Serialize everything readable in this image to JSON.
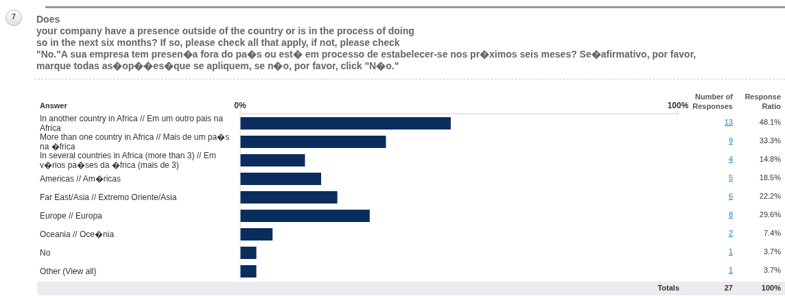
{
  "chart_data": {
    "type": "bar",
    "orientation": "horizontal",
    "title": "Does\nyour company have a presence outside of the country or is in the process of doing\nso in the next six months? If so, please check all that apply, if not, please check\n\"No.\"A sua empresa tem presen�a fora do pa�s ou est� em processo de estabelecer-se nos pr�ximos seis meses? Se�afirmativo, por favor,\nmarque todas as�op��es�que se apliquem, se n�o, por favor, click \"N�o.\"",
    "ylabel": "Answer",
    "categories": [
      "In another country in Africa // Em um outro pais na Africa",
      "More than one country in Africa // Mais de um pa�s na �frica",
      "In several countries in Africa (more than 3) // Em v�rios pa�ses da �frica (mais de 3)",
      "Americas // Am�ricas",
      "Far East/Asia // Extremo Oriente/Asia",
      "Europe // Europa",
      "Oceania // Oce�nia",
      "No",
      "Other (View all)"
    ],
    "values": [
      48.1,
      33.3,
      14.8,
      18.5,
      22.2,
      29.6,
      7.4,
      3.7,
      3.7
    ],
    "value_labels": [
      "48.1%",
      "33.3%",
      "14.8%",
      "18.5%",
      "22.2%",
      "29.6%",
      "7.4%",
      "3.7%",
      "3.7%"
    ],
    "color": "#0b2d5e",
    "xlim": [
      0,
      100
    ],
    "xticks": [
      {
        "value": 0,
        "label": "0%"
      },
      {
        "value": 100,
        "label": "100%"
      }
    ],
    "annotations": [
      "7",
      "Number of\nResponses",
      "Response\nRatio",
      "Totals",
      "27",
      "100%",
      "13",
      "9",
      "4",
      "5",
      "6",
      "8",
      "2",
      "1",
      "1"
    ]
  }
}
